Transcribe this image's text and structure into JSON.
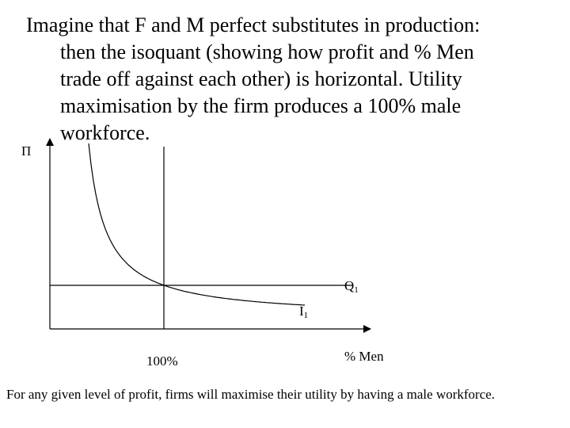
{
  "heading": {
    "lines": [
      "Imagine that F and M perfect substitutes in production:",
      "then the isoquant (showing how profit and % Men",
      "trade off against each other) is horizontal. Utility",
      "maximisation by the firm produces a 100% male",
      "workforce."
    ]
  },
  "diagram": {
    "y_axis_label": "Π",
    "x_axis_label": "% Men",
    "x_marker_label": "100%",
    "isoquant_label": {
      "text": "Q",
      "subscript": "1"
    },
    "indifference_label": {
      "text": "I",
      "subscript": "1"
    }
  },
  "footer": "For any given level of profit, firms will maximise their utility by having a male workforce."
}
